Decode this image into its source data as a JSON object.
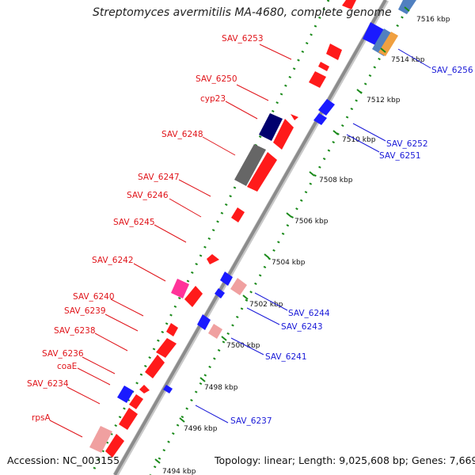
{
  "title": "Streptomyces avermitilis MA-4680, complete genome",
  "footer": {
    "accession": "Accession: NC_003155",
    "summary": "Topology: linear; Length: 9,025,608 bp; Genes: 7,669"
  },
  "colors": {
    "label_left": "#e0141a",
    "label_right": "#1a1ad8",
    "backbone": "#8c8c8c",
    "dots": "#1a8a1a"
  },
  "scale_ticks": [
    "7494 kbp",
    "7496 kbp",
    "7498 kbp",
    "7500 kbp",
    "7502 kbp",
    "7504 kbp",
    "7506 kbp",
    "7508 kbp",
    "7510 kbp",
    "7512 kbp",
    "7514 kbp",
    "7516 kbp"
  ],
  "genes_left": [
    "SAV_6253",
    "SAV_6250",
    "cyp23",
    "SAV_6248",
    "SAV_6247",
    "SAV_6246",
    "SAV_6245",
    "SAV_6242",
    "SAV_6240",
    "SAV_6239",
    "SAV_6238",
    "SAV_6236",
    "coaE",
    "SAV_6234",
    "rpsA"
  ],
  "genes_right": [
    "SAV_6256",
    "SAV_6252",
    "SAV_6251",
    "SAV_6244",
    "SAV_6243",
    "SAV_6241",
    "SAV_6237"
  ]
}
